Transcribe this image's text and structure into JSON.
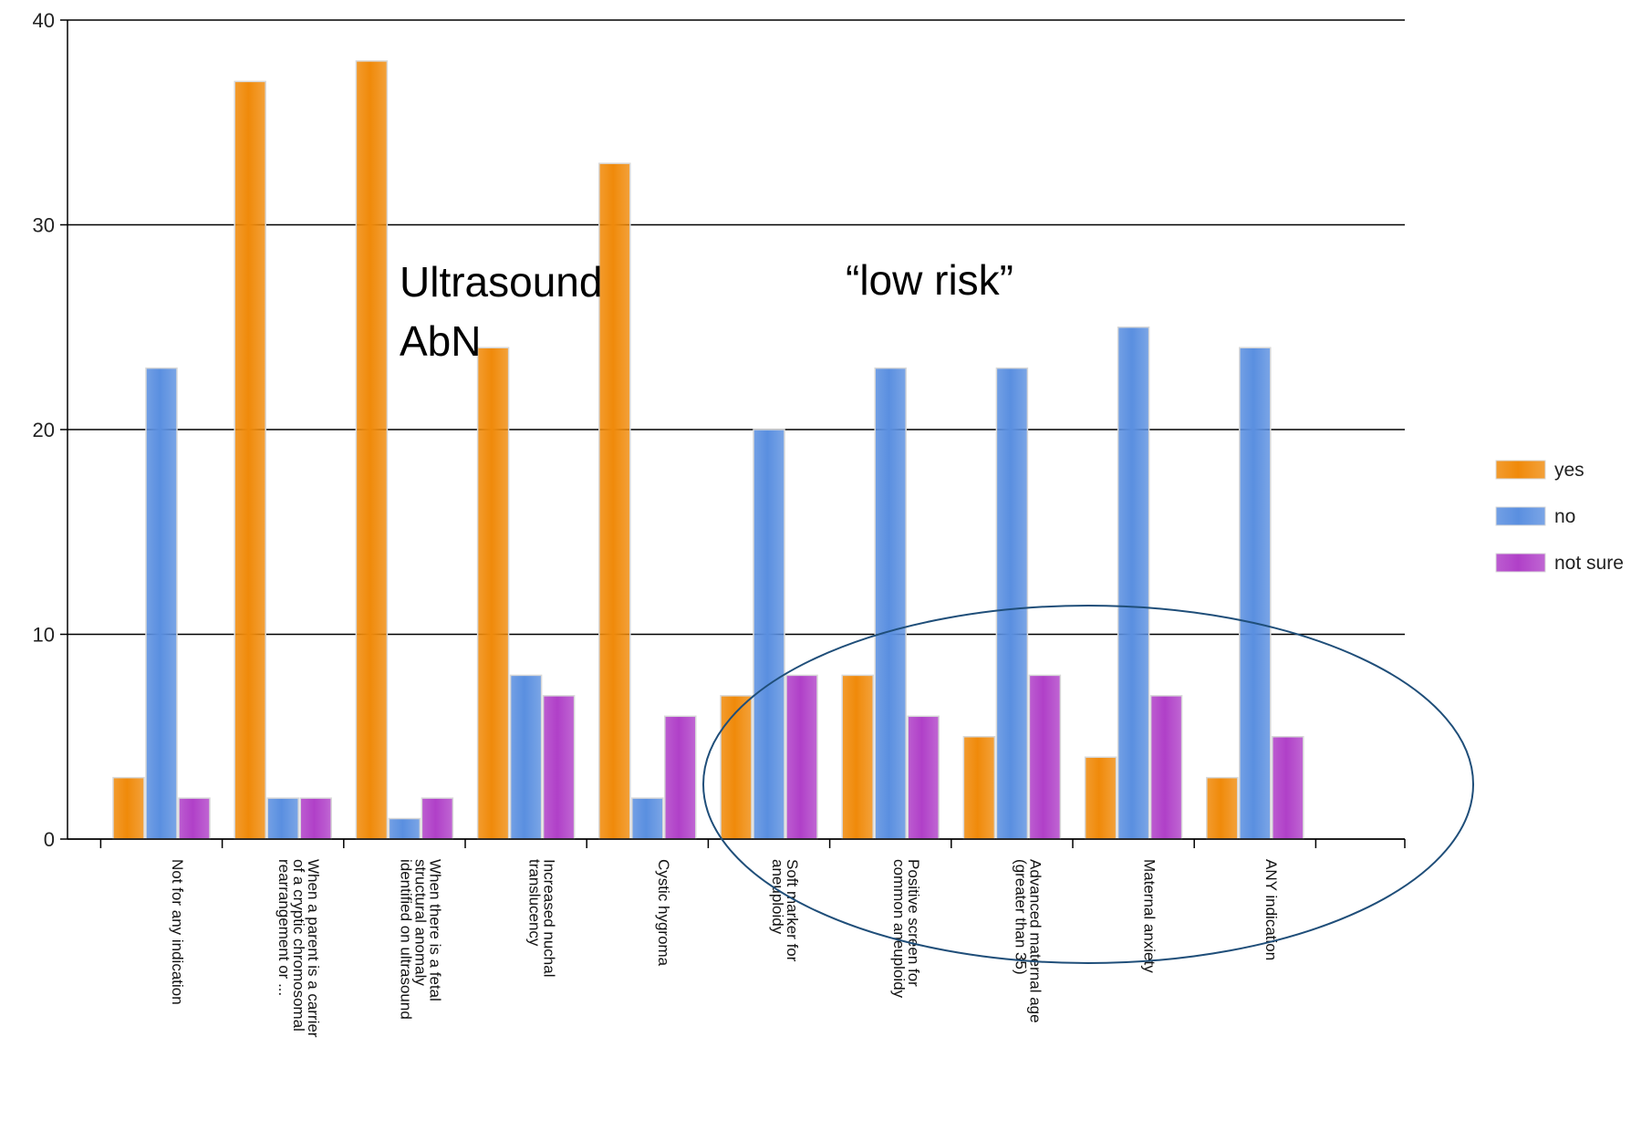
{
  "chart_data": {
    "type": "bar",
    "title": "",
    "xlabel": "",
    "ylabel": "",
    "ylim": [
      0,
      40
    ],
    "y_ticks": [
      0,
      10,
      20,
      30,
      "40"
    ],
    "grid": true,
    "legend_position": "right",
    "categories": [
      [
        "Not for any indication"
      ],
      [
        "When a parent is a carrier",
        "of a cryptic chromosomal",
        "rearrangement or ..."
      ],
      [
        "When there is a fetal",
        "structural anomaly",
        "identified on ultrasound"
      ],
      [
        "Increased nuchal",
        "translucency"
      ],
      [
        "Cystic hygroma"
      ],
      [
        "Soft marker for",
        "aneuploidy"
      ],
      [
        "Positive screen for",
        "common aneuploidy"
      ],
      [
        "Advanced maternal age",
        "(greater than 35)"
      ],
      [
        "Maternal anxiety"
      ],
      [
        "ANY indication"
      ]
    ],
    "series": [
      {
        "name": "yes",
        "color": "#f08a0a",
        "values": [
          3,
          37,
          38,
          24,
          33,
          7,
          8,
          5,
          4,
          3
        ]
      },
      {
        "name": "no",
        "color": "#5a8fe0",
        "values": [
          23,
          2,
          1,
          8,
          2,
          20,
          23,
          23,
          25,
          24
        ]
      },
      {
        "name": "not sure",
        "color": "#b040c8",
        "values": [
          2,
          2,
          2,
          7,
          6,
          8,
          6,
          8,
          7,
          5
        ]
      }
    ],
    "annotations": {
      "ultrasound_line1": "Ultrasound",
      "ultrasound_line2": "AbN",
      "low_risk": "“low risk”"
    },
    "highlight_ellipse_color": "#1f4e79"
  }
}
